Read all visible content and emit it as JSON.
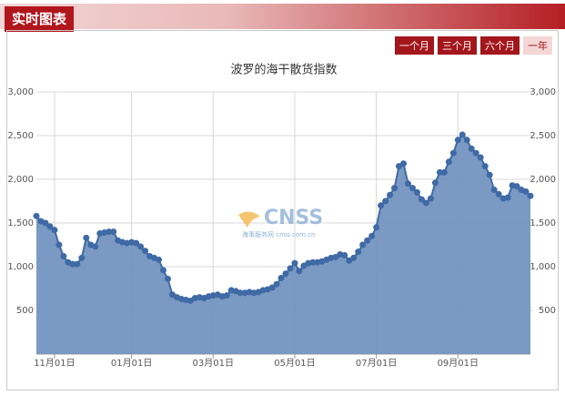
{
  "header": {
    "title": "实时图表"
  },
  "range_buttons": [
    "一个月",
    "三个月",
    "六个月",
    "一年"
  ],
  "watermark": {
    "brand": "CNSS",
    "text": "海事服务网 cnss.com.cn"
  },
  "chart_data": {
    "type": "area",
    "title": "波罗的海干散货指数",
    "categories": [
      null,
      null,
      null,
      null,
      "11月01日",
      null,
      null,
      null,
      null,
      null,
      null,
      null,
      null,
      null,
      null,
      null,
      null,
      null,
      null,
      null,
      null,
      "01月01日",
      null,
      null,
      null,
      null,
      null,
      null,
      null,
      null,
      null,
      null,
      null,
      null,
      null,
      null,
      null,
      null,
      null,
      "03月01日",
      null,
      null,
      null,
      null,
      null,
      null,
      null,
      null,
      null,
      null,
      null,
      null,
      null,
      null,
      null,
      null,
      null,
      "05月01日",
      null,
      null,
      null,
      null,
      null,
      null,
      null,
      null,
      null,
      null,
      null,
      null,
      null,
      null,
      null,
      null,
      null,
      "07月01日",
      null,
      null,
      null,
      null,
      null,
      null,
      null,
      null,
      null,
      null,
      null,
      null,
      null,
      null,
      null,
      null,
      null,
      "09月01日",
      null,
      null,
      null,
      null,
      null,
      null,
      null,
      null,
      null,
      null,
      null,
      null,
      null,
      null,
      null,
      null
    ],
    "values": [
      1580,
      1520,
      1500,
      1460,
      1420,
      1250,
      1120,
      1050,
      1030,
      1030,
      1100,
      1330,
      1250,
      1230,
      1380,
      1390,
      1400,
      1400,
      1300,
      1280,
      1270,
      1280,
      1270,
      1230,
      1180,
      1120,
      1100,
      1080,
      960,
      860,
      680,
      650,
      630,
      620,
      610,
      640,
      650,
      640,
      660,
      670,
      680,
      660,
      670,
      730,
      720,
      700,
      700,
      710,
      700,
      710,
      730,
      740,
      760,
      800,
      870,
      920,
      980,
      1040,
      950,
      1010,
      1040,
      1050,
      1050,
      1060,
      1080,
      1100,
      1110,
      1140,
      1130,
      1070,
      1100,
      1170,
      1250,
      1300,
      1350,
      1450,
      1700,
      1750,
      1820,
      1900,
      2150,
      2180,
      1950,
      1900,
      1850,
      1770,
      1730,
      1780,
      1960,
      2080,
      2080,
      2200,
      2300,
      2450,
      2510,
      2450,
      2350,
      2300,
      2250,
      2150,
      2050,
      1880,
      1830,
      1780,
      1790,
      1930,
      1920,
      1880,
      1860,
      1810
    ],
    "color": "#7394c0",
    "line_color": "#3f6aa5",
    "ylim": [
      0,
      3000
    ],
    "yticks": [
      500,
      {
        "value": 1000,
        "label": "1,000"
      },
      {
        "value": 1500,
        "label": "1,500"
      },
      {
        "value": 2000,
        "label": "2,000"
      },
      {
        "value": 2500,
        "label": "2,500"
      },
      {
        "value": 3000,
        "label": "3,000"
      }
    ],
    "y2lim": [
      0,
      3000
    ],
    "y2ticks": [
      500,
      {
        "value": 1000,
        "label": "1,000"
      },
      {
        "value": 1500,
        "label": "1,500"
      },
      {
        "value": 2000,
        "label": "2,000"
      },
      {
        "value": 2500,
        "label": "2,500"
      },
      {
        "value": 3000,
        "label": "3,000"
      }
    ],
    "grid": true
  }
}
